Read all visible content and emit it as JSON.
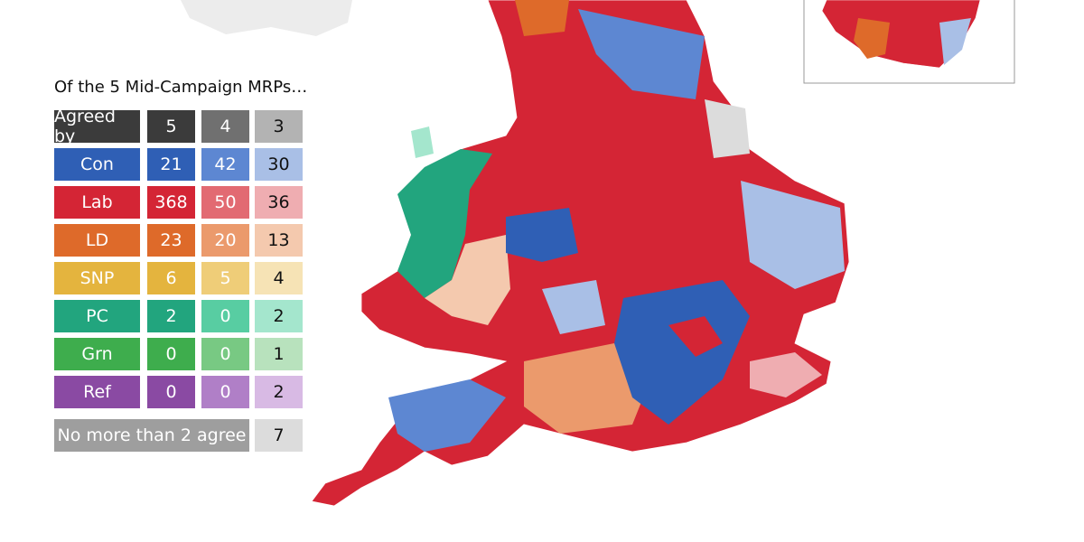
{
  "title": "Of the 5 Mid-Campaign MRPs…",
  "table": {
    "header": {
      "label": "Agreed by",
      "values": [
        5,
        4,
        3
      ],
      "colors": [
        "#3b3b3b",
        "#707070",
        "#b3b3b3"
      ]
    },
    "rows": [
      {
        "label": "Con",
        "values": [
          21,
          42,
          30
        ],
        "colors": [
          "#2f5fb5",
          "#5d87d2",
          "#a9bfe6"
        ]
      },
      {
        "label": "Lab",
        "values": [
          368,
          50,
          36
        ],
        "colors": [
          "#d42535",
          "#e26a72",
          "#efadb1"
        ]
      },
      {
        "label": "LD",
        "values": [
          23,
          20,
          13
        ],
        "colors": [
          "#de6a2a",
          "#eb9a6c",
          "#f4c9ae"
        ]
      },
      {
        "label": "SNP",
        "values": [
          6,
          5,
          4
        ],
        "colors": [
          "#e4b43e",
          "#efcd78",
          "#f6e3b5"
        ]
      },
      {
        "label": "PC",
        "values": [
          2,
          0,
          2
        ],
        "colors": [
          "#22a57e",
          "#58cda2",
          "#a4e6cd"
        ]
      },
      {
        "label": "Grn",
        "values": [
          0,
          0,
          1
        ],
        "colors": [
          "#3ead4d",
          "#78c983",
          "#b8e2bd"
        ]
      },
      {
        "label": "Ref",
        "values": [
          0,
          0,
          2
        ],
        "colors": [
          "#8a4aa3",
          "#b07fc7",
          "#d8bae4"
        ]
      }
    ],
    "footer": {
      "label": "No more than 2 agree",
      "value": 7,
      "colors": [
        "#9e9e9e",
        "#dcdcdc"
      ]
    }
  }
}
